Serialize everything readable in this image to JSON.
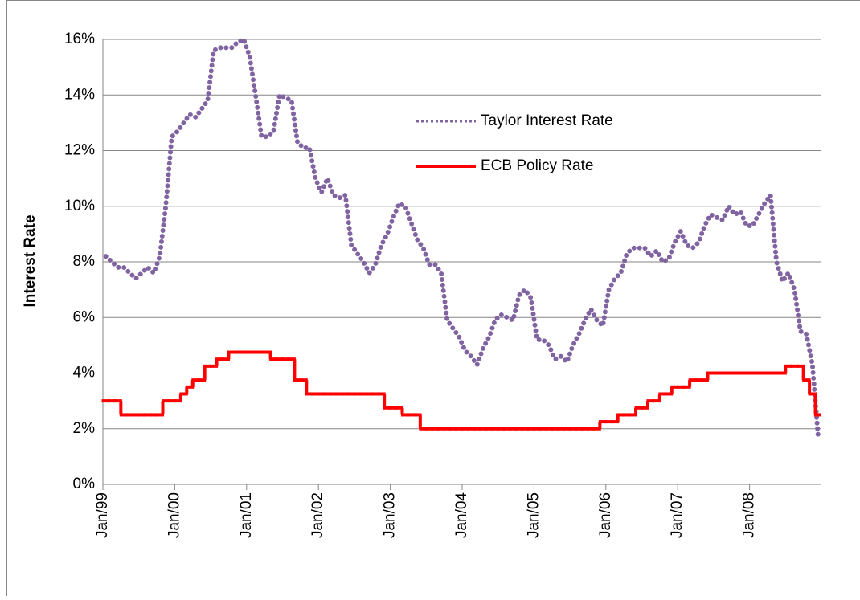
{
  "chart_data": {
    "type": "line",
    "y_label": "Interest Rate",
    "categories": [
      "Jan/99",
      null,
      null,
      null,
      null,
      null,
      null,
      null,
      null,
      null,
      null,
      null,
      "Jan/00",
      null,
      null,
      null,
      null,
      null,
      null,
      null,
      null,
      null,
      null,
      null,
      "Jan/01",
      null,
      null,
      null,
      null,
      null,
      null,
      null,
      null,
      null,
      null,
      null,
      "Jan/02",
      null,
      null,
      null,
      null,
      null,
      null,
      null,
      null,
      null,
      null,
      null,
      "Jan/03",
      null,
      null,
      null,
      null,
      null,
      null,
      null,
      null,
      null,
      null,
      null,
      "Jan/04",
      null,
      null,
      null,
      null,
      null,
      null,
      null,
      null,
      null,
      null,
      null,
      "Jan/05",
      null,
      null,
      null,
      null,
      null,
      null,
      null,
      null,
      null,
      null,
      null,
      "Jan/06",
      null,
      null,
      null,
      null,
      null,
      null,
      null,
      null,
      null,
      null,
      null,
      "Jan/07",
      null,
      null,
      null,
      null,
      null,
      null,
      null,
      null,
      null,
      null,
      null,
      "Jan/08",
      null,
      null,
      null,
      null,
      null,
      null,
      null,
      null,
      null,
      null,
      null
    ],
    "series": [
      {
        "name": "Taylor Interest Rate",
        "color": "#8064a2",
        "style": "dotted",
        "values": [
          8.2,
          8.0,
          7.8,
          7.8,
          7.6,
          7.4,
          7.6,
          7.8,
          7.6,
          8.2,
          10.0,
          12.5,
          12.7,
          13.0,
          13.3,
          13.2,
          13.5,
          13.8,
          15.6,
          15.7,
          15.7,
          15.7,
          15.9,
          16.0,
          15.4,
          14.0,
          12.5,
          12.5,
          12.7,
          14.0,
          13.9,
          13.8,
          12.3,
          12.1,
          12.1,
          11.0,
          10.5,
          11.0,
          10.4,
          10.3,
          10.4,
          8.6,
          8.3,
          8.0,
          7.6,
          7.9,
          8.6,
          9.0,
          9.6,
          10.1,
          10.0,
          9.4,
          8.8,
          8.5,
          7.9,
          7.9,
          7.6,
          5.9,
          5.6,
          5.3,
          4.8,
          4.6,
          4.3,
          4.9,
          5.3,
          5.9,
          6.1,
          6.0,
          5.9,
          6.8,
          7.0,
          6.7,
          5.2,
          5.2,
          5.0,
          4.5,
          4.6,
          4.4,
          5.0,
          5.4,
          5.9,
          6.3,
          5.9,
          5.7,
          7.0,
          7.4,
          7.6,
          8.3,
          8.5,
          8.5,
          8.5,
          8.2,
          8.4,
          8.0,
          8.1,
          8.7,
          9.1,
          8.6,
          8.5,
          8.7,
          9.3,
          9.7,
          9.6,
          9.5,
          10.0,
          9.7,
          9.8,
          9.3,
          9.3,
          9.7,
          10.1,
          10.4,
          8.0,
          7.3,
          7.6,
          7.0,
          5.5,
          5.4,
          4.3,
          1.6
        ]
      },
      {
        "name": "ECB Policy Rate",
        "color": "#ff0000",
        "style": "step",
        "values": [
          3.0,
          3.0,
          3.0,
          2.5,
          2.5,
          2.5,
          2.5,
          2.5,
          2.5,
          2.5,
          3.0,
          3.0,
          3.0,
          3.25,
          3.5,
          3.75,
          3.75,
          4.25,
          4.25,
          4.5,
          4.5,
          4.75,
          4.75,
          4.75,
          4.75,
          4.75,
          4.75,
          4.75,
          4.5,
          4.5,
          4.5,
          4.5,
          3.75,
          3.75,
          3.25,
          3.25,
          3.25,
          3.25,
          3.25,
          3.25,
          3.25,
          3.25,
          3.25,
          3.25,
          3.25,
          3.25,
          3.25,
          2.75,
          2.75,
          2.75,
          2.5,
          2.5,
          2.5,
          2.0,
          2.0,
          2.0,
          2.0,
          2.0,
          2.0,
          2.0,
          2.0,
          2.0,
          2.0,
          2.0,
          2.0,
          2.0,
          2.0,
          2.0,
          2.0,
          2.0,
          2.0,
          2.0,
          2.0,
          2.0,
          2.0,
          2.0,
          2.0,
          2.0,
          2.0,
          2.0,
          2.0,
          2.0,
          2.0,
          2.25,
          2.25,
          2.25,
          2.5,
          2.5,
          2.5,
          2.75,
          2.75,
          3.0,
          3.0,
          3.25,
          3.25,
          3.5,
          3.5,
          3.5,
          3.75,
          3.75,
          3.75,
          4.0,
          4.0,
          4.0,
          4.0,
          4.0,
          4.0,
          4.0,
          4.0,
          4.0,
          4.0,
          4.0,
          4.0,
          4.0,
          4.25,
          4.25,
          4.25,
          3.75,
          3.25,
          2.5
        ]
      }
    ],
    "ylim": [
      0,
      16
    ],
    "yticks": [
      {
        "value": 0,
        "label": "0%"
      },
      {
        "value": 2,
        "label": "2%"
      },
      {
        "value": 4,
        "label": "4%"
      },
      {
        "value": 6,
        "label": "6%"
      },
      {
        "value": 8,
        "label": "8%"
      },
      {
        "value": 10,
        "label": "10%"
      },
      {
        "value": 12,
        "label": "12%"
      },
      {
        "value": 14,
        "label": "14%"
      },
      {
        "value": 16,
        "label": "16%"
      }
    ],
    "grid": true,
    "legend": "upper-center"
  }
}
